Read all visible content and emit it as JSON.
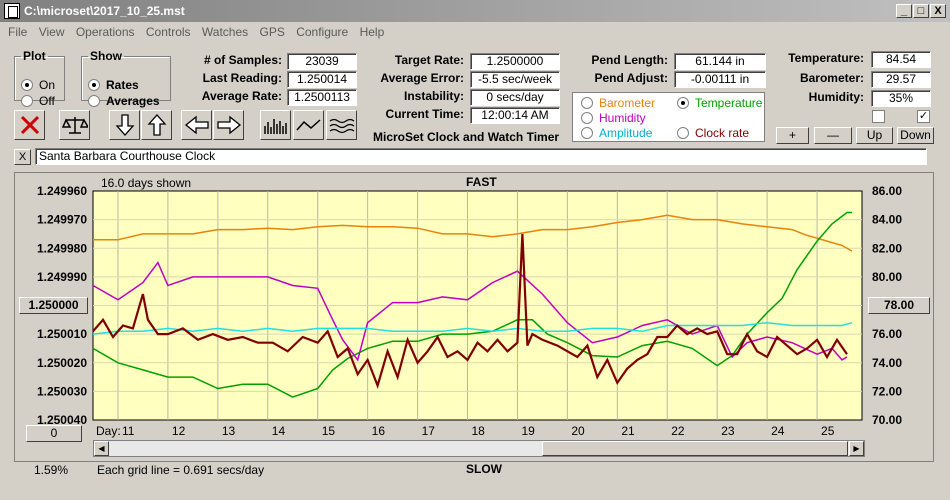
{
  "window": {
    "title": "C:\\microset\\2017_10_25.mst",
    "min": "_",
    "max": "□",
    "close": "X"
  },
  "menu": [
    "File",
    "View",
    "Operations",
    "Controls",
    "Watches",
    "GPS",
    "Configure",
    "Help"
  ],
  "plot_group": {
    "title": "Plot",
    "options": [
      "On",
      "Off"
    ],
    "selected": "On"
  },
  "show_group": {
    "title": "Show",
    "options": [
      "Rates",
      "Averages"
    ],
    "selected": "Rates"
  },
  "stats": {
    "samples_label": "# of Samples:",
    "samples": "23039",
    "last_label": "Last Reading:",
    "last": "1.250014",
    "avg_label": "Average Rate:",
    "avg": "1.2500113",
    "target_label": "Target Rate:",
    "target": "1.2500000",
    "err_label": "Average Error:",
    "err": "-5.5 sec/week",
    "inst_label": "Instability:",
    "inst": "0 secs/day",
    "time_label": "Current Time:",
    "time": "12:00:14 AM",
    "pend_len_label": "Pend Length:",
    "pend_len": "61.144 in",
    "pend_adj_label": "Pend Adjust:",
    "pend_adj": "-0.00111 in",
    "temp_label": "Temperature:",
    "temp": "84.54",
    "baro_label": "Barometer:",
    "baro": "29.57",
    "hum_label": "Humidity:",
    "hum": "35%"
  },
  "app_caption": "MicroSet Clock and Watch Timer",
  "sensor_options": [
    {
      "label": "Barometer",
      "color": "#e8820c",
      "selected": false
    },
    {
      "label": "Temperature",
      "color": "#00a000",
      "selected": true
    },
    {
      "label": "Humidity",
      "color": "#c000c0",
      "selected": false
    },
    {
      "label": "Clock rate",
      "color": "#800000",
      "selected": false
    },
    {
      "label": "Amplitude",
      "color": "#00b0d0",
      "selected": false
    }
  ],
  "right_buttons": [
    "+",
    "—",
    "Up",
    "Down"
  ],
  "x_button": "X",
  "clock_name": "Santa Barbara Courthouse Clock",
  "chart_header": {
    "days_shown": "16.0 days shown",
    "top_title": "FAST",
    "bottom_title": "SLOW",
    "grid_note": "Each grid line = 0.691 secs/day",
    "left_center_button": "1.250000",
    "right_center_button": "78.00",
    "zero_button": "0",
    "percent": "1.59%"
  },
  "chart_data": {
    "type": "line",
    "x_label": "Day:",
    "x_ticks": [
      "11",
      "12",
      "13",
      "14",
      "15",
      "16",
      "17",
      "18",
      "19",
      "20",
      "21",
      "22",
      "23",
      "24",
      "25"
    ],
    "x_range": [
      10.5,
      25.9
    ],
    "y_left_ticks": [
      "1.249960",
      "1.249970",
      "1.249980",
      "1.249990",
      "1.250000",
      "1.250010",
      "1.250020",
      "1.250030",
      "1.250040"
    ],
    "y_left_range": [
      1.24996,
      1.25004
    ],
    "y_right_ticks": [
      "86.00",
      "84.00",
      "82.00",
      "80.00",
      "78.00",
      "76.00",
      "74.00",
      "72.00",
      "70.00"
    ],
    "y_right_range": [
      70,
      86
    ],
    "series": [
      {
        "name": "Barometer",
        "color": "#e8820c",
        "axis": "right",
        "x": [
          10.5,
          11.0,
          11.5,
          12.0,
          12.5,
          13.0,
          13.5,
          14.0,
          14.5,
          15.0,
          15.5,
          16.0,
          16.5,
          17.0,
          17.5,
          18.0,
          18.5,
          19.0,
          19.5,
          20.0,
          20.5,
          21.0,
          21.5,
          22.0,
          22.5,
          23.0,
          23.5,
          24.0,
          24.5,
          24.8,
          25.0,
          25.2,
          25.5,
          25.7
        ],
        "y": [
          82.6,
          82.6,
          83.0,
          83.0,
          83.0,
          83.3,
          83.3,
          83.4,
          83.3,
          83.5,
          83.6,
          83.5,
          83.5,
          83.4,
          83.0,
          83.0,
          82.8,
          83.0,
          83.3,
          83.3,
          83.5,
          83.8,
          84.0,
          84.3,
          84.0,
          84.0,
          83.7,
          83.5,
          83.3,
          82.9,
          82.7,
          82.5,
          82.2,
          81.8
        ]
      },
      {
        "name": "Temperature",
        "color": "#00a000",
        "axis": "right",
        "x": [
          10.5,
          11.0,
          11.5,
          12.0,
          12.5,
          13.0,
          13.5,
          14.0,
          14.5,
          15.0,
          15.3,
          15.6,
          16.0,
          16.5,
          17.0,
          17.5,
          18.0,
          18.5,
          19.0,
          19.3,
          19.6,
          20.0,
          20.5,
          21.0,
          21.5,
          22.0,
          22.5,
          23.0,
          23.3,
          23.6,
          24.0,
          24.3,
          24.6,
          25.0,
          25.3,
          25.6,
          25.7
        ],
        "y": [
          75.0,
          74.0,
          73.5,
          73.0,
          73.0,
          72.2,
          72.5,
          72.5,
          71.6,
          72.2,
          73.5,
          74.3,
          75.0,
          75.5,
          75.5,
          76.0,
          76.0,
          76.2,
          77.0,
          77.0,
          76.0,
          75.4,
          74.5,
          74.4,
          75.2,
          75.5,
          75.0,
          73.8,
          74.5,
          76.0,
          77.5,
          78.5,
          80.5,
          82.5,
          83.7,
          84.5,
          84.5
        ]
      },
      {
        "name": "Humidity",
        "color": "#c000c0",
        "axis": "left",
        "x": [
          10.5,
          11.0,
          11.5,
          11.8,
          12.0,
          12.5,
          13.0,
          13.5,
          14.0,
          14.5,
          15.0,
          15.3,
          15.5,
          15.8,
          16.0,
          16.5,
          17.0,
          17.5,
          18.0,
          18.5,
          19.0,
          19.5,
          20.0,
          20.5,
          21.0,
          21.5,
          22.0,
          22.5,
          23.0,
          23.3,
          23.6,
          24.0,
          24.5,
          25.0,
          25.3,
          25.5,
          25.6
        ],
        "y": [
          1.249993,
          1.249998,
          1.249992,
          1.249985,
          1.249993,
          1.24999,
          1.24999,
          1.24999,
          1.24999,
          1.249993,
          1.249994,
          1.250005,
          1.250012,
          1.250019,
          1.250006,
          1.249999,
          1.249999,
          1.249997,
          1.249998,
          1.249992,
          1.249988,
          1.249996,
          1.250006,
          1.250013,
          1.250011,
          1.250007,
          1.250005,
          1.25001,
          1.250007,
          1.250018,
          1.250013,
          1.250011,
          1.250013,
          1.250017,
          1.250015,
          1.250019,
          1.250018
        ]
      },
      {
        "name": "Amplitude",
        "color": "#20e0e0",
        "axis": "left",
        "x": [
          10.5,
          11.0,
          11.5,
          12.0,
          12.5,
          13.0,
          13.5,
          14.0,
          14.5,
          15.0,
          15.5,
          16.0,
          16.5,
          17.0,
          17.5,
          18.0,
          18.5,
          19.0,
          19.5,
          20.0,
          20.5,
          21.0,
          21.5,
          22.0,
          22.5,
          23.0,
          23.5,
          24.0,
          24.5,
          25.0,
          25.5,
          25.7
        ],
        "y": [
          1.25001,
          1.250009,
          1.250009,
          1.250008,
          1.250009,
          1.250008,
          1.250009,
          1.250008,
          1.250009,
          1.250008,
          1.250008,
          1.250008,
          1.250009,
          1.250009,
          1.250009,
          1.250008,
          1.250009,
          1.250008,
          1.250009,
          1.250009,
          1.250008,
          1.250008,
          1.250009,
          1.250007,
          1.250007,
          1.250007,
          1.250007,
          1.250006,
          1.250007,
          1.250007,
          1.250007,
          1.250006
        ]
      },
      {
        "name": "Clock rate",
        "color": "#800000",
        "axis": "left",
        "x": [
          10.5,
          10.7,
          10.9,
          11.1,
          11.3,
          11.5,
          11.6,
          11.8,
          12.0,
          12.3,
          12.6,
          12.9,
          13.2,
          13.5,
          13.8,
          14.1,
          14.4,
          14.7,
          15.0,
          15.2,
          15.4,
          15.6,
          15.8,
          16.0,
          16.2,
          16.4,
          16.6,
          16.8,
          17.0,
          17.2,
          17.4,
          17.6,
          17.8,
          18.0,
          18.2,
          18.4,
          18.6,
          18.8,
          19.0,
          19.1,
          19.2,
          19.3,
          19.5,
          19.8,
          20.0,
          20.2,
          20.4,
          20.6,
          20.8,
          21.0,
          21.2,
          21.4,
          21.6,
          21.8,
          22.0,
          22.2,
          22.4,
          22.6,
          22.8,
          23.0,
          23.2,
          23.4,
          23.6,
          23.8,
          24.0,
          24.2,
          24.4,
          24.6,
          24.8,
          25.0,
          25.2,
          25.4,
          25.6
        ],
        "y": [
          1.250009,
          1.250005,
          1.250011,
          1.250007,
          1.250008,
          1.249996,
          1.250005,
          1.25001,
          1.25001,
          1.250008,
          1.250012,
          1.25001,
          1.250012,
          1.250011,
          1.250013,
          1.250013,
          1.250016,
          1.250011,
          1.250013,
          1.250009,
          1.250018,
          1.250015,
          1.250024,
          1.250019,
          1.250028,
          1.250016,
          1.250025,
          1.250012,
          1.25002,
          1.250016,
          1.250011,
          1.250018,
          1.250016,
          1.250019,
          1.250013,
          1.250016,
          1.250012,
          1.250016,
          1.250013,
          1.249975,
          1.250014,
          1.25001,
          1.250012,
          1.250014,
          1.250016,
          1.250018,
          1.250014,
          1.250025,
          1.250019,
          1.250027,
          1.250022,
          1.250019,
          1.250017,
          1.250011,
          1.250011,
          1.250007,
          1.25001,
          1.250008,
          1.25001,
          1.250009,
          1.250017,
          1.250017,
          1.25001,
          1.250016,
          1.250018,
          1.250011,
          1.250014,
          1.250017,
          1.250015,
          1.250012,
          1.250018,
          1.250012,
          1.250017
        ]
      }
    ]
  }
}
